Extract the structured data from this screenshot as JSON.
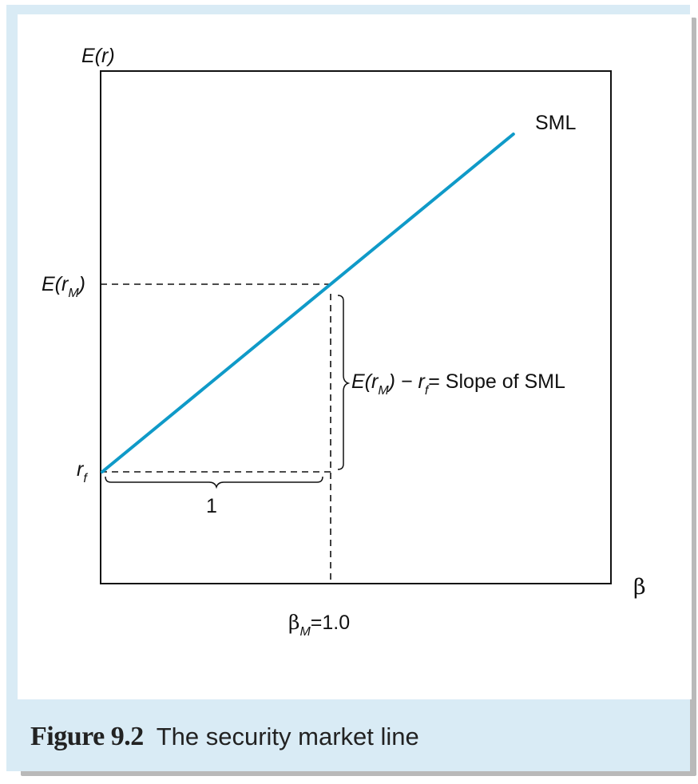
{
  "figure": {
    "number": "Figure 9.2",
    "title": "The security market line"
  },
  "chart_data": {
    "type": "line",
    "axes": {
      "x": {
        "label": "β",
        "range": [
          0,
          2.0
        ]
      },
      "y": {
        "label": "E(r)"
      }
    },
    "grid": false,
    "legend": "none",
    "series": [
      {
        "name": "SML",
        "x": [
          0,
          1.0,
          1.8
        ],
        "y_symbolic": [
          "rf",
          "E(rM)",
          ""
        ],
        "color": "#0f9ac8"
      }
    ],
    "annotations": {
      "rf": {
        "base": "r",
        "sub": "f"
      },
      "erm": {
        "pre": "E(r",
        "sub": "M",
        "post": ")"
      },
      "beta_m": {
        "pre": "β",
        "sub": "M",
        "post": "=1.0"
      },
      "run": "1",
      "slope": {
        "pre": "E(r",
        "sub": "M",
        "mid": ") − r",
        "sub2": "f",
        "post": "= Slope of SML"
      }
    }
  }
}
